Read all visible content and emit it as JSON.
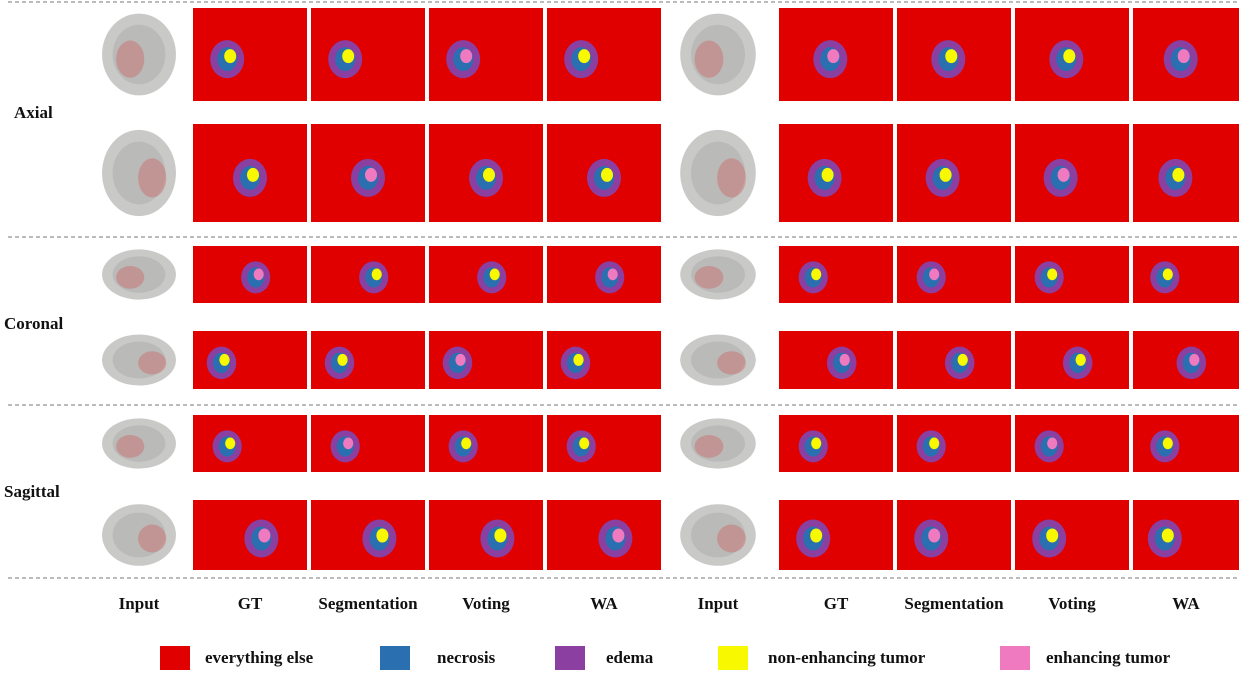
{
  "row_labels": [
    "Axial",
    "Coronal",
    "Sagittal"
  ],
  "columns": [
    "Input",
    "GT",
    "Segmentation",
    "Voting",
    "WA",
    "Input",
    "GT",
    "Segmentation",
    "Voting",
    "WA"
  ],
  "legend": [
    {
      "label": "everything else",
      "color": "#e00000"
    },
    {
      "label": "necrosis",
      "color": "#2a6fb0"
    },
    {
      "label": "edema",
      "color": "#8b3fa0"
    },
    {
      "label": "non-enhancing tumor",
      "color": "#f8f800"
    },
    {
      "label": "enhancing tumor",
      "color": "#f07ac0"
    }
  ]
}
